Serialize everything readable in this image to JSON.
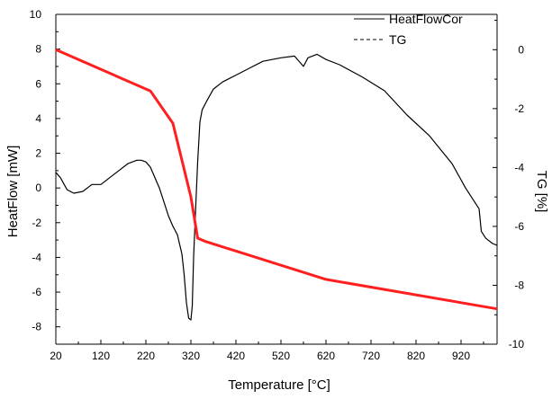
{
  "chart_data": {
    "type": "line",
    "xlabel": "Temperature [°C]",
    "ylabel_left": "HeatFlow [mW]",
    "ylabel_right": "TG [%]",
    "xlim": [
      20,
      1000
    ],
    "ylim_left": [
      -9,
      10
    ],
    "ylim_right": [
      -10,
      1.2
    ],
    "x_ticks": [
      "20",
      "120",
      "220",
      "320",
      "420",
      "520",
      "620",
      "720",
      "820",
      "920"
    ],
    "y_left_ticks": [
      "10",
      "8",
      "6",
      "4",
      "2",
      "0",
      "-2",
      "-4",
      "-6",
      "-8"
    ],
    "y_right_ticks": [
      "0",
      "-2",
      "-4",
      "-6",
      "-8",
      "-10"
    ],
    "legend_placement": "top-right",
    "series": [
      {
        "name": "HeatFlowCor",
        "axis": "left",
        "color": "#000000",
        "style": "solid",
        "x": [
          20,
          30,
          45,
          60,
          80,
          100,
          120,
          150,
          180,
          200,
          210,
          220,
          230,
          240,
          250,
          260,
          270,
          280,
          290,
          300,
          305,
          310,
          315,
          320,
          323,
          326,
          330,
          335,
          340,
          345,
          355,
          370,
          390,
          420,
          450,
          480,
          520,
          550,
          570,
          580,
          600,
          620,
          650,
          700,
          750,
          800,
          850,
          900,
          930,
          960,
          965,
          975,
          990,
          1000
        ],
        "y": [
          0.9,
          0.6,
          -0.1,
          -0.3,
          -0.2,
          0.2,
          0.2,
          0.8,
          1.4,
          1.6,
          1.6,
          1.5,
          1.2,
          0.6,
          0.0,
          -0.8,
          -1.6,
          -2.2,
          -2.7,
          -3.8,
          -5.0,
          -6.6,
          -7.5,
          -7.6,
          -6.8,
          -4.0,
          -1.5,
          1.5,
          3.8,
          4.5,
          5.0,
          5.7,
          6.1,
          6.5,
          6.9,
          7.3,
          7.5,
          7.6,
          7.0,
          7.5,
          7.7,
          7.4,
          7.1,
          6.4,
          5.6,
          4.2,
          3.0,
          1.4,
          0.0,
          -1.2,
          -2.5,
          -2.9,
          -3.2,
          -3.3
        ]
      },
      {
        "name": "TG",
        "axis": "right",
        "color": "#ff1f1f",
        "style": "solid",
        "x": [
          20,
          230,
          280,
          320,
          335,
          350,
          620,
          1000
        ],
        "y": [
          0.0,
          -1.4,
          -2.5,
          -5.0,
          -6.4,
          -6.5,
          -7.8,
          -8.8
        ]
      }
    ]
  }
}
